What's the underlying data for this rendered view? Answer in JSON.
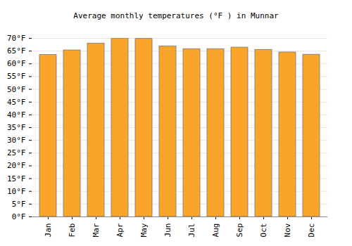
{
  "chart_data": {
    "type": "bar",
    "title": "Average monthly temperatures (°F ) in Munnar",
    "categories": [
      "Jan",
      "Feb",
      "Mar",
      "Apr",
      "May",
      "Jun",
      "Jul",
      "Aug",
      "Sep",
      "Oct",
      "Nov",
      "Dec"
    ],
    "values": [
      63.5,
      65.3,
      68.0,
      70.0,
      69.8,
      66.9,
      65.8,
      65.8,
      66.4,
      65.5,
      64.5,
      63.6
    ],
    "color": "#fba42a",
    "ylim": [
      0,
      70
    ],
    "yticks": [
      {
        "value": 0,
        "label": "0°F"
      },
      {
        "value": 5,
        "label": "5°F"
      },
      {
        "value": 10,
        "label": "10°F"
      },
      {
        "value": 15,
        "label": "15°F"
      },
      {
        "value": 20,
        "label": "20°F"
      },
      {
        "value": 25,
        "label": "25°F"
      },
      {
        "value": 30,
        "label": "30°F"
      },
      {
        "value": 35,
        "label": "35°F"
      },
      {
        "value": 40,
        "label": "40°F"
      },
      {
        "value": 45,
        "label": "45°F"
      },
      {
        "value": 50,
        "label": "50°F"
      },
      {
        "value": 55,
        "label": "55°F"
      },
      {
        "value": 60,
        "label": "60°F"
      },
      {
        "value": 65,
        "label": "65°F"
      },
      {
        "value": 70,
        "label": "70°F"
      }
    ],
    "grid": true
  }
}
